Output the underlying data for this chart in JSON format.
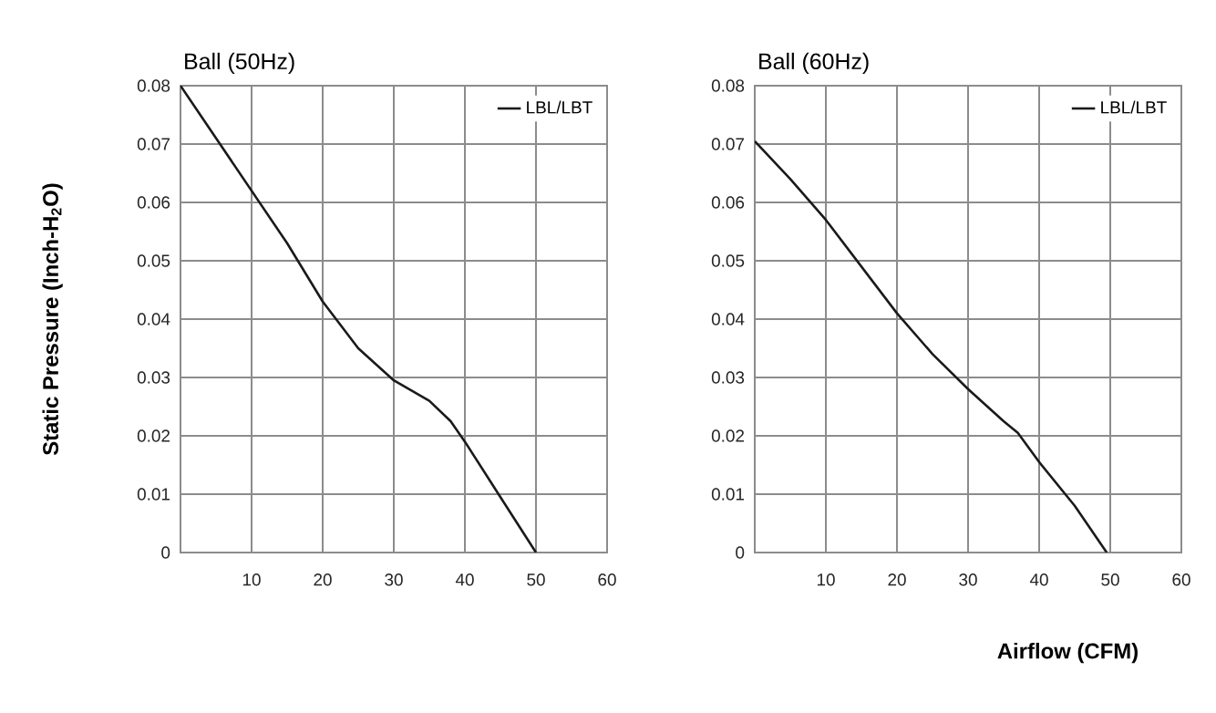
{
  "chart_data": [
    {
      "type": "line",
      "title": "Ball (50Hz)",
      "ylabel": "Static Pressure (Inch-H$_{2}$O)",
      "xlim": [
        0,
        60
      ],
      "ylim": [
        0,
        0.08
      ],
      "xticks": [
        {
          "value": 0,
          "label": null
        },
        10,
        20,
        30,
        40,
        50,
        60
      ],
      "yticks": [
        0,
        0.01,
        0.02,
        0.03,
        0.04,
        0.05,
        0.06,
        0.07,
        0.08
      ],
      "grid": true,
      "legend": "top right",
      "series": [
        {
          "name": "LBL/LBT",
          "color": "#1a1a1a",
          "x": [
            0,
            5,
            10,
            15,
            20,
            25,
            30,
            35,
            38,
            40,
            45,
            50
          ],
          "values": [
            0.08,
            0.071,
            0.062,
            0.053,
            0.043,
            0.035,
            0.0295,
            0.026,
            0.0225,
            0.019,
            0.0095,
            0
          ]
        }
      ]
    },
    {
      "type": "line",
      "title": "Ball (60Hz)",
      "xlabel": "Airflow (CFM)",
      "xlim": [
        0,
        60
      ],
      "ylim": [
        0,
        0.08
      ],
      "xticks": [
        {
          "value": 0,
          "label": null
        },
        10,
        20,
        30,
        40,
        50,
        60
      ],
      "yticks": [
        0,
        0.01,
        0.02,
        0.03,
        0.04,
        0.05,
        0.06,
        0.07,
        0.08
      ],
      "grid": true,
      "legend": "top right",
      "series": [
        {
          "name": "LBL/LBT",
          "color": "#1a1a1a",
          "x": [
            0,
            5,
            10,
            15,
            20,
            25,
            30,
            35,
            37,
            40,
            45,
            49.5
          ],
          "values": [
            0.0705,
            0.064,
            0.057,
            0.049,
            0.041,
            0.034,
            0.028,
            0.0225,
            0.0205,
            0.0155,
            0.008,
            0
          ]
        }
      ]
    }
  ]
}
